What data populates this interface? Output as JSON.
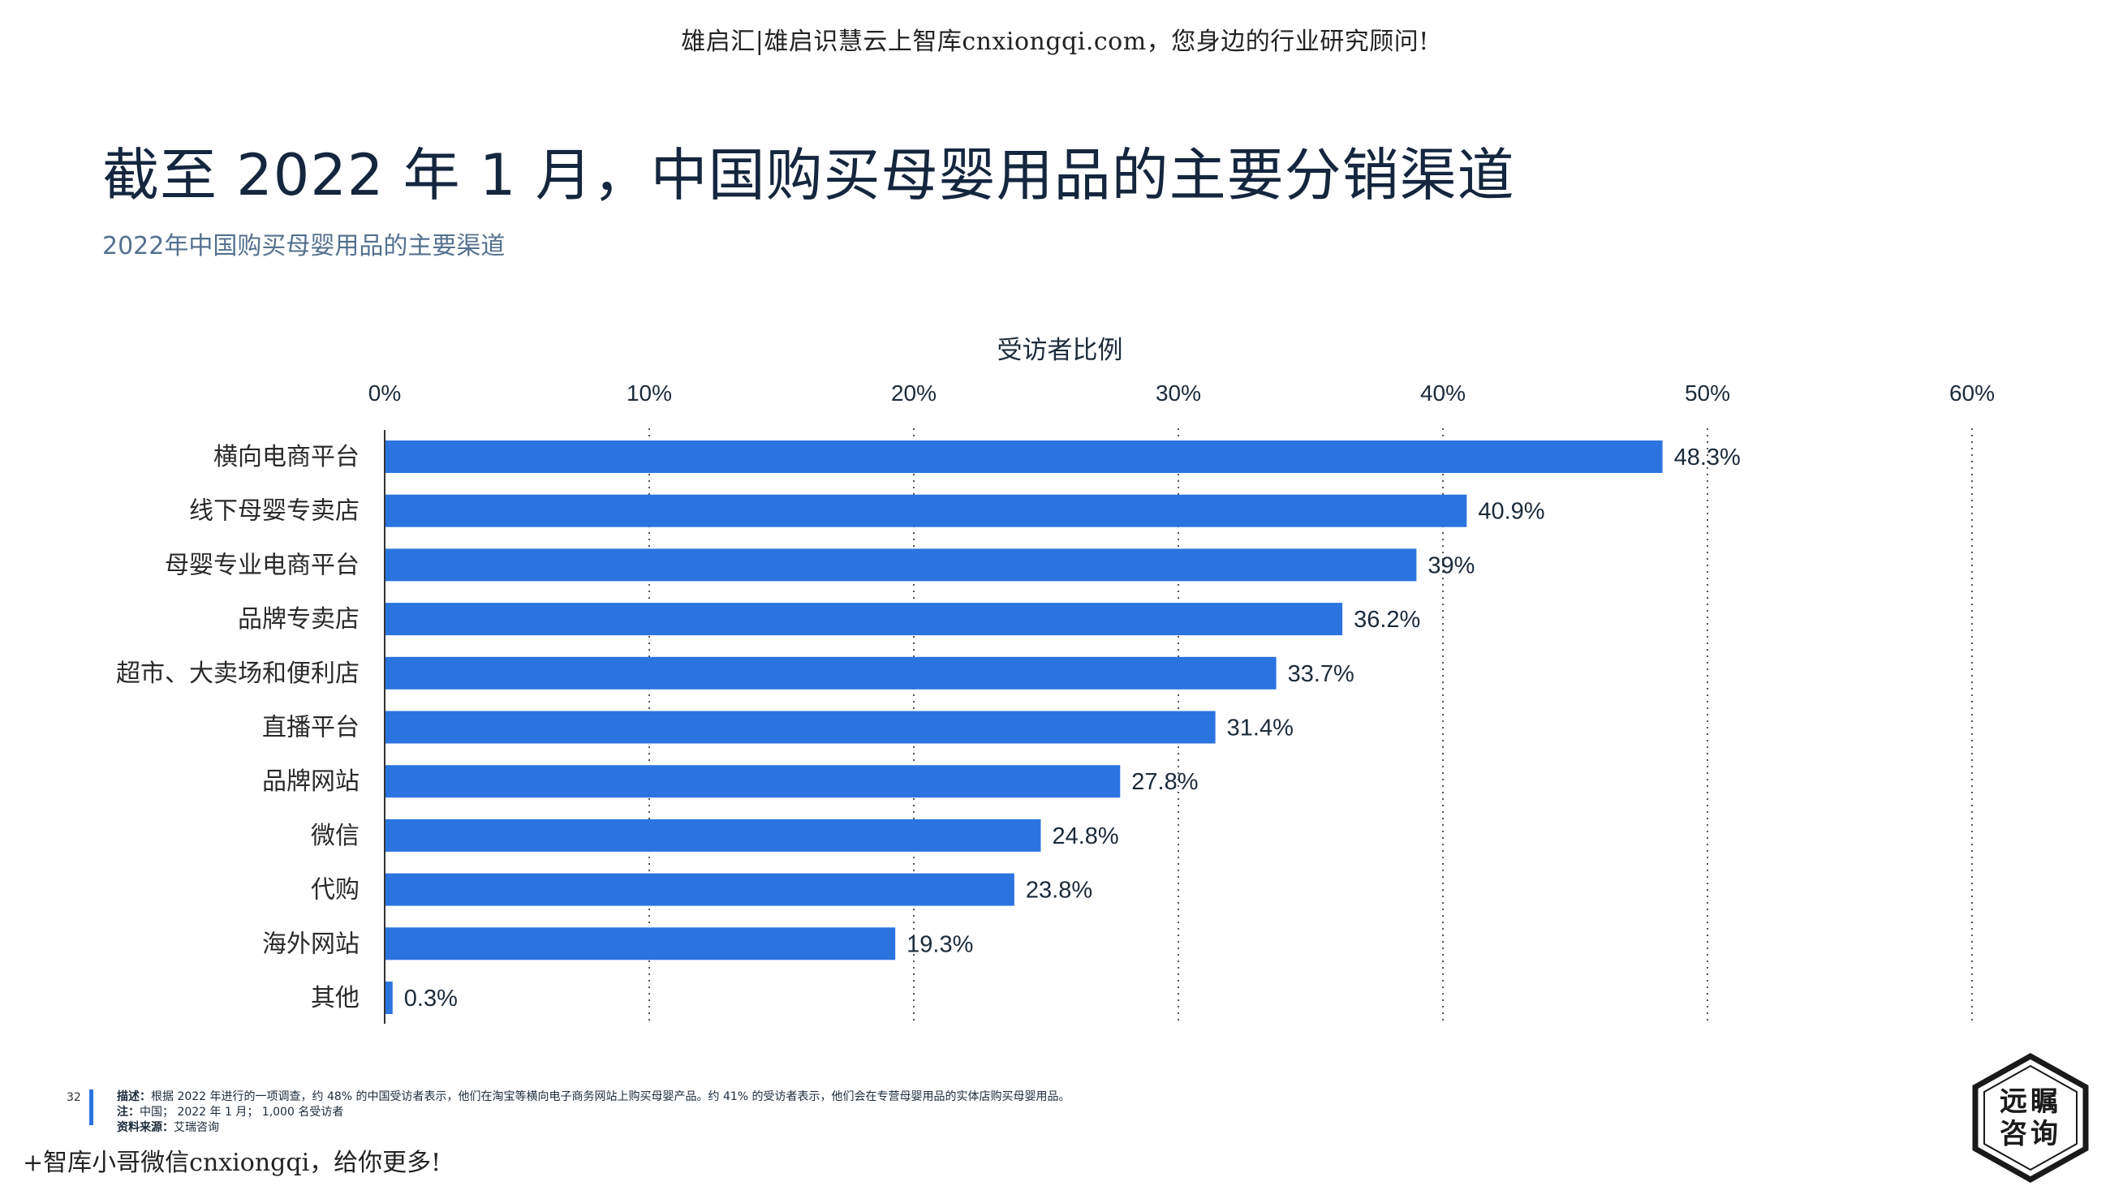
{
  "watermark": {
    "top": "雄启汇|雄启识慧云上智库cnxiongqi.com，您身边的行业研究顾问!",
    "bottom": "+智库小哥微信cnxiongqi，给你更多!"
  },
  "header": {
    "title": "截至 2022 年 1 月，中国购买母婴用品的主要分销渠道",
    "subtitle": "2022年中国购买母婴用品的主要渠道"
  },
  "chart_data": {
    "type": "bar",
    "orientation": "horizontal",
    "xlabel": "受访者比例",
    "ylabel": "",
    "xlim": [
      0,
      60
    ],
    "x_ticks": [
      "0%",
      "10%",
      "20%",
      "30%",
      "40%",
      "50%",
      "60%"
    ],
    "x_tick_values": [
      0,
      10,
      20,
      30,
      40,
      50,
      60
    ],
    "categories": [
      "横向电商平台",
      "线下母婴专卖店",
      "母婴专业电商平台",
      "品牌专卖店",
      "超市、大卖场和便利店",
      "直播平台",
      "品牌网站",
      "微信",
      "代购",
      "海外网站",
      "其他"
    ],
    "values": [
      48.3,
      40.9,
      39,
      36.2,
      33.7,
      31.4,
      27.8,
      24.8,
      23.8,
      19.3,
      0.3
    ],
    "value_labels": [
      "48.3%",
      "40.9%",
      "39%",
      "36.2%",
      "33.7%",
      "31.4%",
      "27.8%",
      "24.8%",
      "23.8%",
      "19.3%",
      "0.3%"
    ],
    "bar_color": "#2b74e0",
    "grid": "vertical dotted",
    "legend": "none"
  },
  "footer": {
    "page_number": "32",
    "description_label": "描述：",
    "description": "根据 2022 年进行的一项调查，约 48% 的中国受访者表示，他们在淘宝等横向电子商务网站上购买母婴产品。约 41% 的受访者表示，他们会在专营母婴用品的实体店购买母婴用品。",
    "note_label": "注：",
    "note": "中国； 2022 年 1 月； 1,000 名受访者",
    "source_label": "资料来源：",
    "source": "艾瑞咨询"
  },
  "logo": {
    "text_line1": "远瞩",
    "text_line2": "咨询"
  }
}
